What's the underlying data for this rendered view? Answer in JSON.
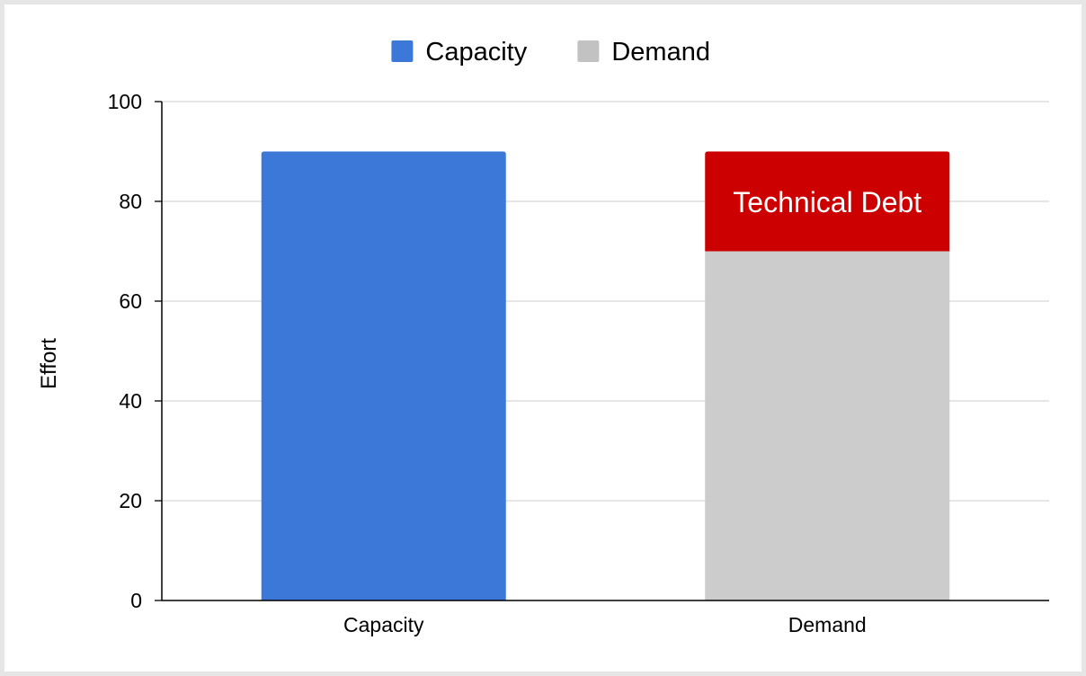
{
  "chart_data": {
    "type": "bar",
    "stacked": true,
    "categories": [
      "Capacity",
      "Demand"
    ],
    "series": [
      {
        "name": "Capacity",
        "color": "#3c78d8",
        "values": [
          90,
          0
        ]
      },
      {
        "name": "Demand",
        "color": "#cccccc",
        "values": [
          0,
          70
        ]
      },
      {
        "color": "#cc0000",
        "values": [
          0,
          20
        ]
      }
    ],
    "bar_annotation": {
      "category": "Demand",
      "text": "Technical Debt"
    },
    "legend": {
      "position": "top",
      "items": [
        {
          "label": "Capacity",
          "color": "#3c78d8"
        },
        {
          "label": "Demand",
          "color": "#c2c2c2"
        }
      ]
    },
    "title": "",
    "xlabel": "",
    "ylabel": "Effort",
    "ylim": [
      0,
      100
    ],
    "yticks": [
      0,
      20,
      40,
      60,
      80,
      100
    ],
    "grid": true
  }
}
